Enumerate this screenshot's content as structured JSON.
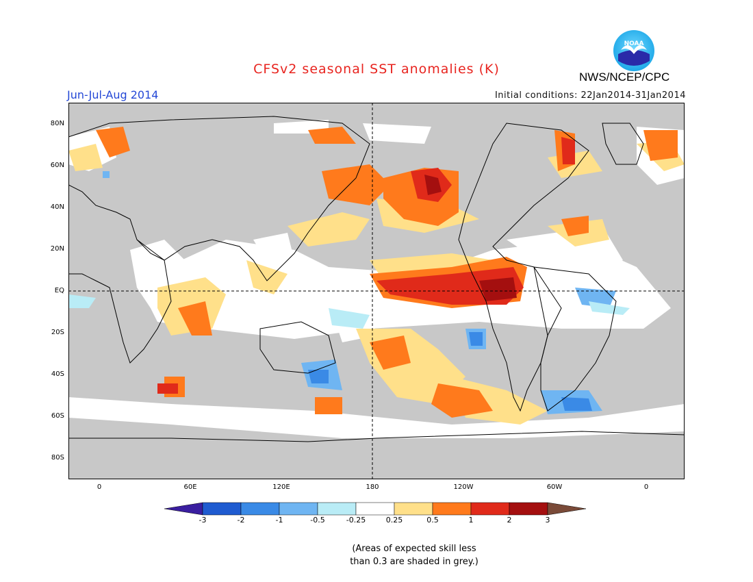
{
  "header": {
    "title": "CFSv2 seasonal SST anomalies (K)",
    "season": "Jun-Jul-Aug 2014",
    "initial_conditions": "Initial conditions: 22Jan2014-31Jan2014",
    "agency": "NWS/NCEP/CPC",
    "logo_text": "NOAA"
  },
  "map": {
    "lat_labels": [
      "80N",
      "60N",
      "40N",
      "20N",
      "EQ",
      "20S",
      "40S",
      "60S",
      "80S"
    ],
    "lon_labels": [
      "0",
      "60E",
      "120E",
      "180",
      "120W",
      "60W",
      "0"
    ],
    "colors": {
      "land": "#c8c8c8",
      "ocean_skill": "#ffffff",
      "border": "#000000"
    }
  },
  "colorbar": {
    "labels": [
      "-3",
      "-2",
      "-1",
      "-0.5",
      "-0.25",
      "0.25",
      "0.5",
      "1",
      "2",
      "3"
    ],
    "colors": [
      "#3a1ea0",
      "#1f5bd0",
      "#3a8ae6",
      "#6fb5f2",
      "#b9ecf6",
      "#ffffff",
      "#ffe08a",
      "#ff7a1c",
      "#e02a1a",
      "#a40f0f",
      "#7a4a38"
    ]
  },
  "note": {
    "line1": "(Areas of expected skill less",
    "line2": "than 0.3 are shaded in grey.)"
  }
}
